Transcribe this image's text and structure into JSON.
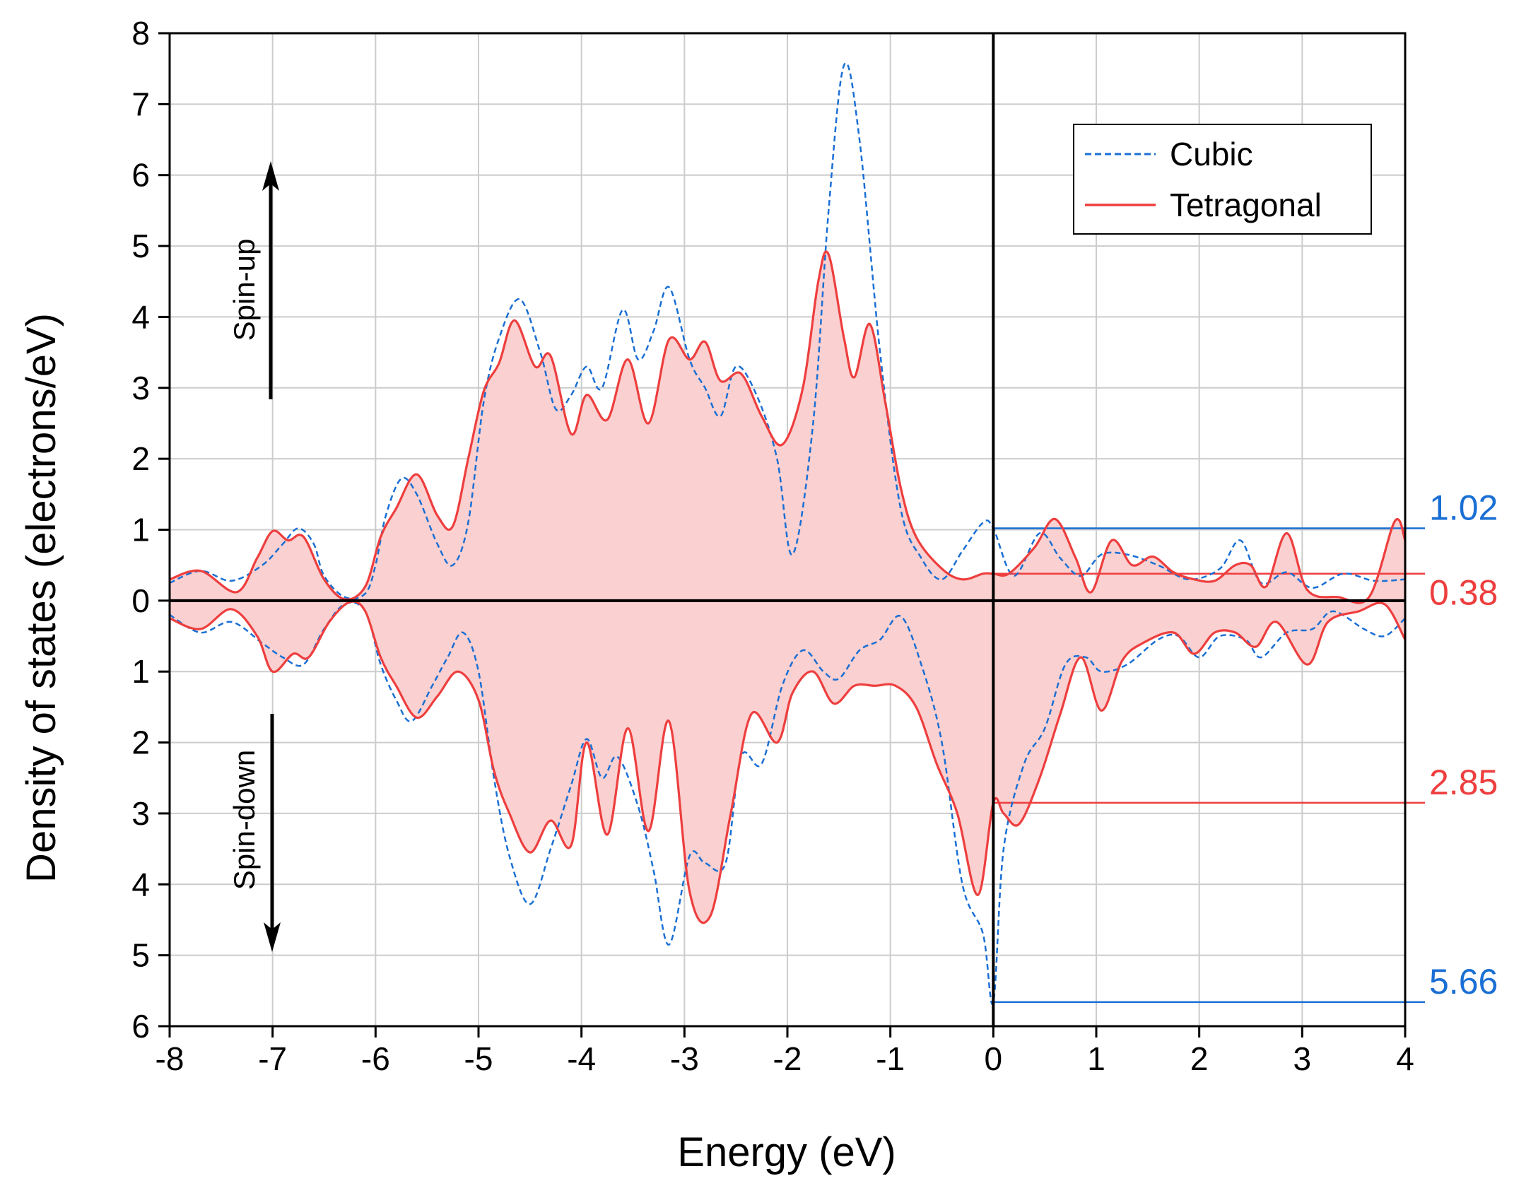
{
  "chart_data": {
    "type": "line",
    "title": "",
    "xlabel": "Energy (eV)",
    "ylabel": "Density of states (electrons/eV)",
    "xlim": [
      -8,
      4
    ],
    "ylim": [
      -6,
      8
    ],
    "x_ticks": [
      -8,
      -7,
      -6,
      -5,
      -4,
      -3,
      -2,
      -1,
      0,
      1,
      2,
      3,
      4
    ],
    "x_tick_labels": [
      "-8",
      "-7",
      "-6",
      "-5",
      "-4",
      "-3",
      "-2",
      "-1",
      "0",
      "1",
      "2",
      "3",
      "4"
    ],
    "y_ticks": [
      -6,
      -5,
      -4,
      -3,
      -2,
      -1,
      0,
      1,
      2,
      3,
      4,
      5,
      6,
      7,
      8
    ],
    "y_tick_labels": [
      "6",
      "5",
      "4",
      "3",
      "2",
      "1",
      "0",
      "1",
      "2",
      "3",
      "4",
      "5",
      "6",
      "7",
      "8"
    ],
    "grid": true,
    "legend_position": "top-right",
    "annotations": {
      "spin_up": "Spin-up",
      "spin_down": "Spin-down"
    },
    "series": [
      {
        "name": "Cubic",
        "style": "dashed",
        "color": "#1a6fd4",
        "spin_up": [
          [
            -8,
            0.25
          ],
          [
            -7.7,
            0.42
          ],
          [
            -7.4,
            0.28
          ],
          [
            -7.1,
            0.5
          ],
          [
            -6.9,
            0.8
          ],
          [
            -6.75,
            1.02
          ],
          [
            -6.6,
            0.8
          ],
          [
            -6.5,
            0.35
          ],
          [
            -6.3,
            0.05
          ],
          [
            -6.1,
            0.1
          ],
          [
            -6.0,
            0.5
          ],
          [
            -5.9,
            1.2
          ],
          [
            -5.75,
            1.72
          ],
          [
            -5.6,
            1.5
          ],
          [
            -5.4,
            0.8
          ],
          [
            -5.25,
            0.5
          ],
          [
            -5.1,
            1.1
          ],
          [
            -4.95,
            2.8
          ],
          [
            -4.8,
            3.7
          ],
          [
            -4.6,
            4.25
          ],
          [
            -4.4,
            3.5
          ],
          [
            -4.25,
            2.7
          ],
          [
            -4.1,
            2.9
          ],
          [
            -3.95,
            3.3
          ],
          [
            -3.8,
            3.0
          ],
          [
            -3.6,
            4.1
          ],
          [
            -3.45,
            3.4
          ],
          [
            -3.3,
            3.8
          ],
          [
            -3.15,
            4.42
          ],
          [
            -2.95,
            3.4
          ],
          [
            -2.8,
            3.0
          ],
          [
            -2.65,
            2.6
          ],
          [
            -2.5,
            3.3
          ],
          [
            -2.3,
            2.9
          ],
          [
            -2.1,
            2.0
          ],
          [
            -1.95,
            0.65
          ],
          [
            -1.75,
            2.5
          ],
          [
            -1.6,
            5.5
          ],
          [
            -1.45,
            7.55
          ],
          [
            -1.3,
            6.5
          ],
          [
            -1.1,
            3.5
          ],
          [
            -0.9,
            1.3
          ],
          [
            -0.7,
            0.6
          ],
          [
            -0.5,
            0.3
          ],
          [
            -0.3,
            0.7
          ],
          [
            -0.1,
            1.1
          ],
          [
            0,
            1.02
          ],
          [
            0.2,
            0.35
          ],
          [
            0.45,
            0.95
          ],
          [
            0.65,
            0.6
          ],
          [
            0.85,
            0.35
          ],
          [
            1.05,
            0.65
          ],
          [
            1.3,
            0.65
          ],
          [
            1.6,
            0.5
          ],
          [
            1.9,
            0.3
          ],
          [
            2.2,
            0.45
          ],
          [
            2.4,
            0.85
          ],
          [
            2.6,
            0.25
          ],
          [
            2.85,
            0.4
          ],
          [
            3.1,
            0.18
          ],
          [
            3.4,
            0.38
          ],
          [
            3.7,
            0.28
          ],
          [
            4,
            0.3
          ]
        ],
        "spin_down": [
          [
            -8,
            -0.2
          ],
          [
            -7.7,
            -0.45
          ],
          [
            -7.4,
            -0.3
          ],
          [
            -7.1,
            -0.6
          ],
          [
            -6.9,
            -0.8
          ],
          [
            -6.7,
            -0.9
          ],
          [
            -6.5,
            -0.4
          ],
          [
            -6.3,
            -0.05
          ],
          [
            -6.1,
            -0.15
          ],
          [
            -5.95,
            -0.9
          ],
          [
            -5.8,
            -1.4
          ],
          [
            -5.65,
            -1.7
          ],
          [
            -5.45,
            -1.2
          ],
          [
            -5.3,
            -0.8
          ],
          [
            -5.15,
            -0.45
          ],
          [
            -5.0,
            -1.0
          ],
          [
            -4.85,
            -2.5
          ],
          [
            -4.7,
            -3.6
          ],
          [
            -4.5,
            -4.28
          ],
          [
            -4.3,
            -3.5
          ],
          [
            -4.1,
            -2.6
          ],
          [
            -3.95,
            -1.95
          ],
          [
            -3.8,
            -2.5
          ],
          [
            -3.65,
            -2.2
          ],
          [
            -3.45,
            -2.9
          ],
          [
            -3.3,
            -3.8
          ],
          [
            -3.15,
            -4.85
          ],
          [
            -2.95,
            -3.6
          ],
          [
            -2.8,
            -3.7
          ],
          [
            -2.6,
            -3.7
          ],
          [
            -2.45,
            -2.2
          ],
          [
            -2.25,
            -2.3
          ],
          [
            -2.05,
            -1.2
          ],
          [
            -1.85,
            -0.7
          ],
          [
            -1.65,
            -1.0
          ],
          [
            -1.5,
            -1.1
          ],
          [
            -1.3,
            -0.7
          ],
          [
            -1.1,
            -0.55
          ],
          [
            -0.9,
            -0.22
          ],
          [
            -0.7,
            -0.9
          ],
          [
            -0.5,
            -2.0
          ],
          [
            -0.3,
            -4.0
          ],
          [
            -0.1,
            -4.7
          ],
          [
            0,
            -5.66
          ],
          [
            0.1,
            -3.5
          ],
          [
            0.3,
            -2.3
          ],
          [
            0.5,
            -1.8
          ],
          [
            0.7,
            -0.9
          ],
          [
            0.9,
            -0.8
          ],
          [
            1.05,
            -1.0
          ],
          [
            1.3,
            -0.9
          ],
          [
            1.6,
            -0.55
          ],
          [
            1.8,
            -0.5
          ],
          [
            2.0,
            -0.8
          ],
          [
            2.2,
            -0.5
          ],
          [
            2.45,
            -0.55
          ],
          [
            2.6,
            -0.8
          ],
          [
            2.85,
            -0.45
          ],
          [
            3.1,
            -0.4
          ],
          [
            3.3,
            -0.15
          ],
          [
            3.6,
            -0.4
          ],
          [
            3.8,
            -0.5
          ],
          [
            4,
            -0.25
          ]
        ]
      },
      {
        "name": "Tetragonal",
        "style": "solid",
        "color": "#ee3e3e",
        "fill": "#fbd0d0",
        "spin_up": [
          [
            -8,
            0.3
          ],
          [
            -7.7,
            0.42
          ],
          [
            -7.35,
            0.12
          ],
          [
            -7.15,
            0.6
          ],
          [
            -7.0,
            0.98
          ],
          [
            -6.85,
            0.85
          ],
          [
            -6.7,
            0.9
          ],
          [
            -6.5,
            0.3
          ],
          [
            -6.3,
            0.02
          ],
          [
            -6.1,
            0.2
          ],
          [
            -5.95,
            0.9
          ],
          [
            -5.8,
            1.3
          ],
          [
            -5.6,
            1.78
          ],
          [
            -5.4,
            1.2
          ],
          [
            -5.25,
            1.05
          ],
          [
            -5.1,
            2.0
          ],
          [
            -4.95,
            2.95
          ],
          [
            -4.8,
            3.35
          ],
          [
            -4.65,
            3.95
          ],
          [
            -4.45,
            3.3
          ],
          [
            -4.3,
            3.45
          ],
          [
            -4.1,
            2.35
          ],
          [
            -3.95,
            2.9
          ],
          [
            -3.75,
            2.55
          ],
          [
            -3.55,
            3.4
          ],
          [
            -3.35,
            2.5
          ],
          [
            -3.15,
            3.68
          ],
          [
            -2.95,
            3.4
          ],
          [
            -2.8,
            3.65
          ],
          [
            -2.65,
            3.1
          ],
          [
            -2.45,
            3.2
          ],
          [
            -2.25,
            2.6
          ],
          [
            -2.05,
            2.2
          ],
          [
            -1.85,
            3.0
          ],
          [
            -1.7,
            4.5
          ],
          [
            -1.6,
            4.88
          ],
          [
            -1.45,
            3.7
          ],
          [
            -1.35,
            3.15
          ],
          [
            -1.2,
            3.9
          ],
          [
            -1.05,
            2.8
          ],
          [
            -0.9,
            1.6
          ],
          [
            -0.75,
            0.9
          ],
          [
            -0.5,
            0.45
          ],
          [
            -0.3,
            0.3
          ],
          [
            -0.1,
            0.38
          ],
          [
            0,
            0.38
          ],
          [
            0.15,
            0.38
          ],
          [
            0.4,
            0.75
          ],
          [
            0.6,
            1.15
          ],
          [
            0.8,
            0.6
          ],
          [
            0.95,
            0.12
          ],
          [
            1.15,
            0.85
          ],
          [
            1.35,
            0.5
          ],
          [
            1.55,
            0.62
          ],
          [
            1.75,
            0.4
          ],
          [
            1.95,
            0.3
          ],
          [
            2.15,
            0.28
          ],
          [
            2.35,
            0.5
          ],
          [
            2.5,
            0.5
          ],
          [
            2.65,
            0.2
          ],
          [
            2.85,
            0.95
          ],
          [
            3.05,
            0.15
          ],
          [
            3.35,
            0.05
          ],
          [
            3.65,
            0.05
          ],
          [
            3.9,
            1.12
          ],
          [
            4,
            0.85
          ]
        ],
        "spin_down": [
          [
            -8,
            -0.25
          ],
          [
            -7.7,
            -0.4
          ],
          [
            -7.4,
            -0.12
          ],
          [
            -7.15,
            -0.5
          ],
          [
            -7.0,
            -1.0
          ],
          [
            -6.8,
            -0.75
          ],
          [
            -6.65,
            -0.8
          ],
          [
            -6.45,
            -0.3
          ],
          [
            -6.25,
            -0.02
          ],
          [
            -6.1,
            -0.15
          ],
          [
            -5.95,
            -0.8
          ],
          [
            -5.8,
            -1.2
          ],
          [
            -5.6,
            -1.65
          ],
          [
            -5.4,
            -1.35
          ],
          [
            -5.2,
            -1.0
          ],
          [
            -5.0,
            -1.4
          ],
          [
            -4.85,
            -2.4
          ],
          [
            -4.7,
            -3.0
          ],
          [
            -4.5,
            -3.55
          ],
          [
            -4.3,
            -3.1
          ],
          [
            -4.1,
            -3.45
          ],
          [
            -3.95,
            -2.0
          ],
          [
            -3.75,
            -3.3
          ],
          [
            -3.55,
            -1.8
          ],
          [
            -3.35,
            -3.25
          ],
          [
            -3.15,
            -1.7
          ],
          [
            -2.95,
            -4.1
          ],
          [
            -2.75,
            -4.45
          ],
          [
            -2.55,
            -3.0
          ],
          [
            -2.35,
            -1.6
          ],
          [
            -2.1,
            -2.0
          ],
          [
            -1.95,
            -1.3
          ],
          [
            -1.75,
            -1.0
          ],
          [
            -1.55,
            -1.45
          ],
          [
            -1.35,
            -1.2
          ],
          [
            -1.15,
            -1.2
          ],
          [
            -0.95,
            -1.2
          ],
          [
            -0.75,
            -1.5
          ],
          [
            -0.55,
            -2.3
          ],
          [
            -0.35,
            -3.0
          ],
          [
            -0.15,
            -4.15
          ],
          [
            0,
            -2.85
          ],
          [
            0.1,
            -3.0
          ],
          [
            0.25,
            -3.15
          ],
          [
            0.45,
            -2.5
          ],
          [
            0.65,
            -1.6
          ],
          [
            0.85,
            -0.8
          ],
          [
            1.05,
            -1.55
          ],
          [
            1.25,
            -0.85
          ],
          [
            1.45,
            -0.6
          ],
          [
            1.75,
            -0.45
          ],
          [
            1.95,
            -0.75
          ],
          [
            2.15,
            -0.45
          ],
          [
            2.35,
            -0.45
          ],
          [
            2.55,
            -0.65
          ],
          [
            2.75,
            -0.3
          ],
          [
            3.05,
            -0.9
          ],
          [
            3.25,
            -0.3
          ],
          [
            3.55,
            -0.15
          ],
          [
            3.8,
            -0.05
          ],
          [
            4,
            -0.55
          ]
        ]
      }
    ],
    "reference_lines": [
      {
        "label": "1.02",
        "value": 1.02,
        "color": "#1a6fd4"
      },
      {
        "label": "0.38",
        "value": 0.38,
        "color": "#ee3e3e"
      },
      {
        "label": "2.85",
        "value": -2.85,
        "color": "#ee3e3e"
      },
      {
        "label": "5.66",
        "value": -5.66,
        "color": "#1a6fd4"
      }
    ]
  }
}
